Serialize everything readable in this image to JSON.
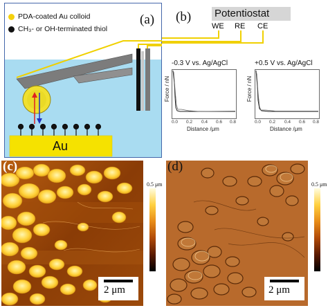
{
  "panel_a": {
    "label": "(a)",
    "legend": [
      {
        "text": "PDA-coated Au colloid",
        "color": "#f5d10c"
      },
      {
        "text": "CH₃- or OH-terminated thiol",
        "color": "#111111"
      }
    ],
    "substrate_label": "Au"
  },
  "panel_b": {
    "label": "(b)",
    "potentiostat": "Potentiostat",
    "electrodes": [
      "WE",
      "RE",
      "CE"
    ],
    "plots": [
      {
        "title": "-0.3 V vs. Ag/AgCl",
        "ylabel": "Force / nN",
        "xlabel": "Distance /μm",
        "xticks": [
          "0.0",
          "0.2",
          "0.4",
          "0.6",
          "0.8"
        ]
      },
      {
        "title": "+0.5 V vs. Ag/AgCl",
        "ylabel": "Force / nN",
        "xlabel": "Distance /μm",
        "xticks": [
          "0.0",
          "0.2",
          "0.4",
          "0.6",
          "0.8"
        ]
      }
    ]
  },
  "panel_c": {
    "label": "(c)",
    "scale_bar": "2 μm",
    "colorbar_label": "0.5 μm"
  },
  "panel_d": {
    "label": "(d)",
    "scale_bar": "2 μm",
    "colorbar_label": "0.5 μm"
  }
}
